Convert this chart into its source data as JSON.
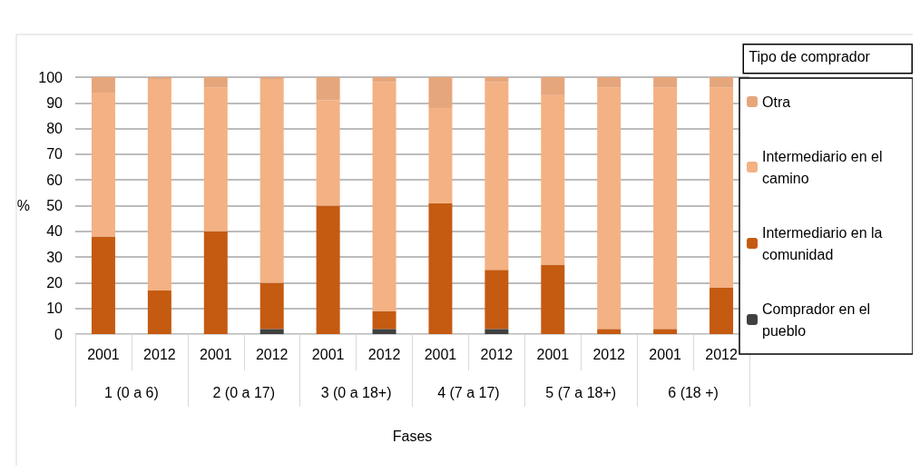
{
  "chart_data": {
    "type": "bar",
    "stacked": true,
    "xlabel": "Fases",
    "ylabel": "%",
    "legend_title": "Tipo de comprador",
    "legend": "right",
    "categories": [
      "2001",
      "2012",
      "2001",
      "2012",
      "2001",
      "2012",
      "2001",
      "2012",
      "2001",
      "2012",
      "2001",
      "2012"
    ],
    "annotations": [
      "1 (0 a 6)",
      "2 (0 a 17)",
      "3 (0 a 18+)",
      "4 (7 a 17)",
      "5 (7 a 18+)",
      "6 (18 +)"
    ],
    "series": [
      {
        "name": "Comprador en el pueblo",
        "color": "#404040",
        "values": [
          0,
          0,
          0,
          2,
          0,
          2,
          0,
          2,
          0,
          0,
          0,
          0
        ]
      },
      {
        "name": "Intermediario en la comunidad",
        "color": "#c55a11",
        "values": [
          38,
          17,
          40,
          18,
          50,
          7,
          51,
          23,
          27,
          2,
          2,
          18
        ]
      },
      {
        "name": "Intermediario en el camino",
        "color": "#f4b183",
        "values": [
          56,
          82,
          56,
          79,
          41,
          89,
          37,
          73,
          66,
          94,
          94,
          78
        ]
      },
      {
        "name": "Otra",
        "color": "#e6a67c",
        "values": [
          6,
          1,
          4,
          1,
          9,
          2,
          12,
          2,
          7,
          4,
          4,
          4
        ]
      }
    ],
    "ylim": [
      0,
      100
    ],
    "yticks": [
      0,
      10,
      20,
      30,
      40,
      50,
      60,
      70,
      80,
      90,
      100
    ],
    "grid": "y"
  }
}
